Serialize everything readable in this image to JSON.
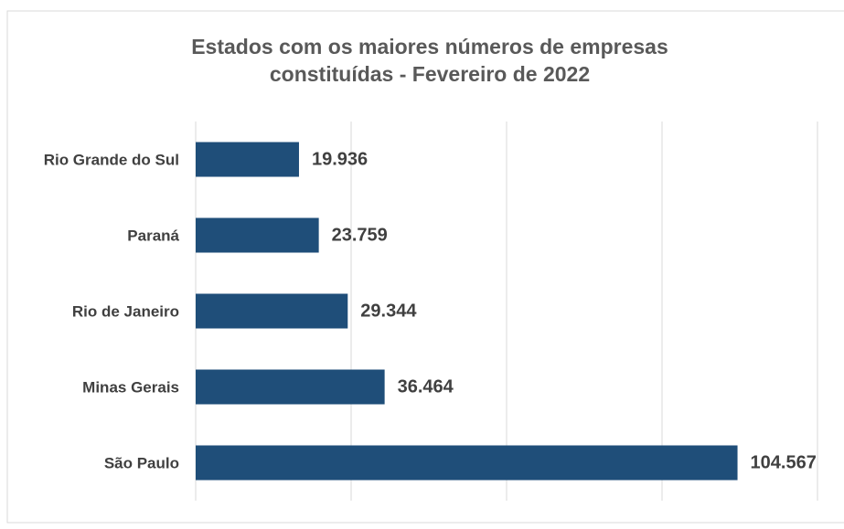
{
  "chart_data": {
    "type": "bar",
    "orientation": "horizontal",
    "title": "Estados com os maiores números de empresas constituídas - Fevereiro de 2022",
    "categories": [
      "Rio Grande do Sul",
      "Paraná",
      "Rio de Janeiro",
      "Minas Gerais",
      "São Paulo"
    ],
    "values": [
      19936,
      23759,
      29344,
      36464,
      104567
    ],
    "value_labels": [
      "19.936",
      "23.759",
      "29.344",
      "36.464",
      "104.567"
    ],
    "color": "#1f4e79",
    "xlim": [
      0,
      120000
    ],
    "xticks": [
      0,
      30000,
      60000,
      90000,
      120000
    ],
    "grid": true
  }
}
